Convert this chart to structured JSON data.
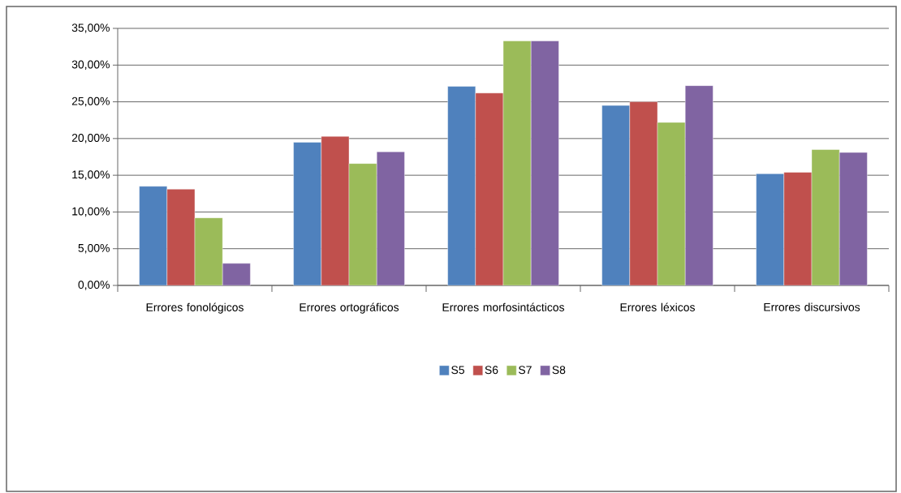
{
  "chart_data": {
    "type": "bar",
    "categories": [
      "Errores fonológicos",
      "Errores ortográficos",
      "Errores morfosintácticos",
      "Errores léxicos",
      "Errores discursivos"
    ],
    "series": [
      {
        "name": "S5",
        "color": "#4f81bd",
        "values": [
          13.5,
          19.5,
          27.1,
          24.5,
          15.2
        ]
      },
      {
        "name": "S6",
        "color": "#c0504d",
        "values": [
          13.1,
          20.3,
          26.2,
          25.0,
          15.4
        ]
      },
      {
        "name": "S7",
        "color": "#9bbb59",
        "values": [
          9.2,
          16.6,
          33.3,
          22.2,
          18.5
        ]
      },
      {
        "name": "S8",
        "color": "#8064a2",
        "values": [
          3.0,
          18.2,
          33.3,
          27.2,
          18.1
        ]
      }
    ],
    "ylim": [
      0,
      35
    ],
    "yticks": [
      {
        "value": 0,
        "label": "0,00%"
      },
      {
        "value": 5,
        "label": "5,00%"
      },
      {
        "value": 10,
        "label": "10,00%"
      },
      {
        "value": 15,
        "label": "15,00%"
      },
      {
        "value": 20,
        "label": "20,00%"
      },
      {
        "value": 25,
        "label": "25,00%"
      },
      {
        "value": 30,
        "label": "30,00%"
      },
      {
        "value": 35,
        "label": "35,00%"
      }
    ],
    "grid": "y",
    "legend": "bottom"
  }
}
